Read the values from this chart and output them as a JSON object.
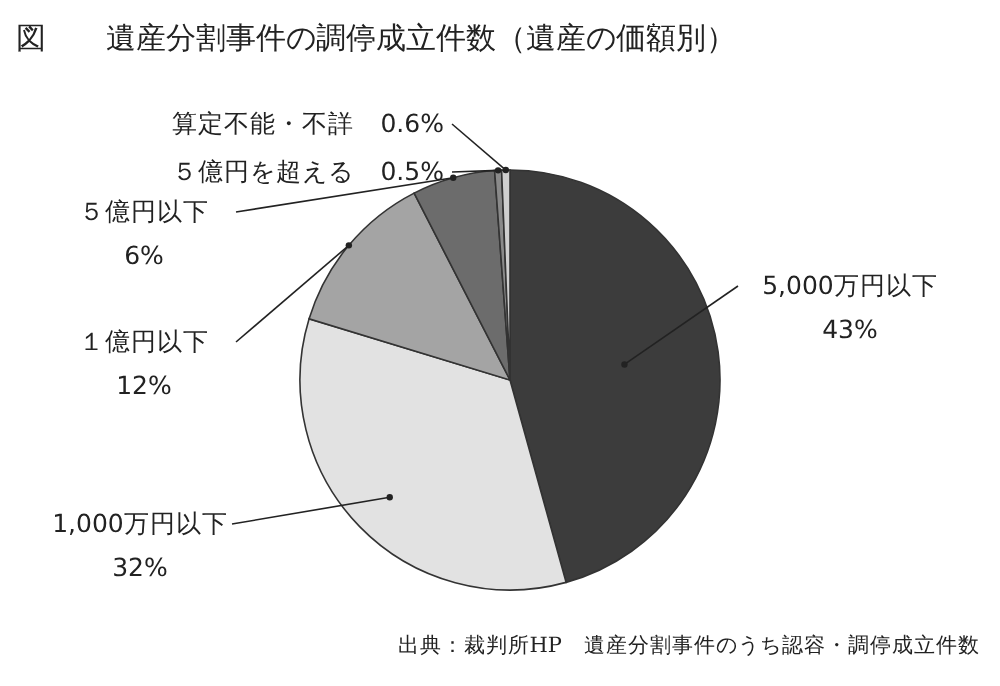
{
  "chart_data": {
    "type": "pie",
    "title": "図　　遺産分割事件の調停成立件数（遺産の価額別）",
    "categories": [
      "5,000万円以下",
      "1,000万円以下",
      "１億円以下",
      "５億円以下",
      "５億円を超える",
      "算定不能・不詳"
    ],
    "values": [
      43,
      32,
      12,
      6,
      0.5,
      0.6
    ],
    "colors": [
      "#3c3c3c",
      "#e2e2e2",
      "#a4a4a4",
      "#6c6c6c",
      "#8a8a8a",
      "#cfcfcf"
    ],
    "value_labels": [
      "43%",
      "32%",
      "12%",
      "6%",
      "0.5%",
      "0.6%"
    ],
    "annotations": [
      "出典：裁判所HP　遺産分割事件のうち認容・調停成立件数"
    ]
  }
}
